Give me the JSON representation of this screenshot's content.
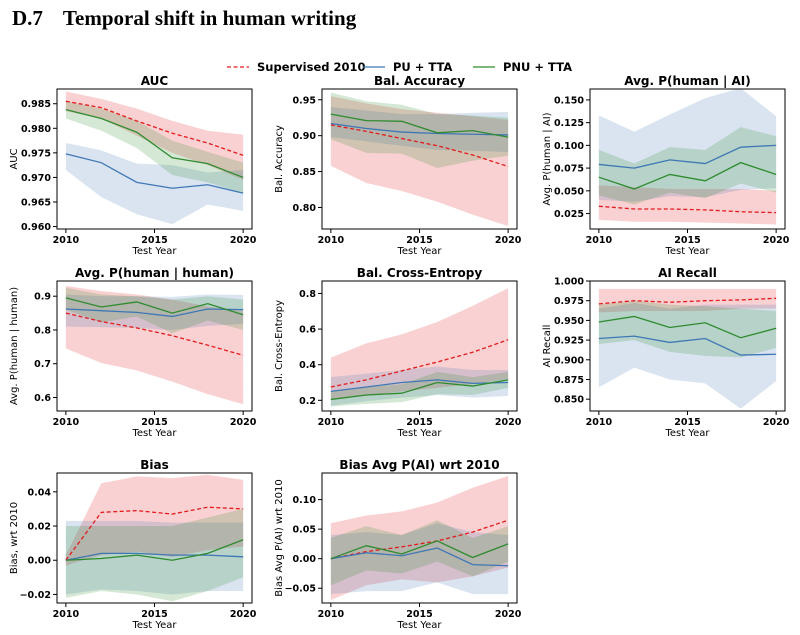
{
  "section": {
    "number": "D.7",
    "title": "Temporal shift in human writing"
  },
  "legend": {
    "position": "top-center",
    "entries": [
      {
        "label": "Supervised 2010",
        "color": "#e41a1c",
        "dash": true
      },
      {
        "label": "PU + TTA",
        "color": "#3f77b4",
        "dash": false
      },
      {
        "label": "PNU + TTA",
        "color": "#2e8b2e",
        "dash": false
      }
    ]
  },
  "chart_data": [
    {
      "type": "line",
      "title": "AUC",
      "xlabel": "Test Year",
      "ylabel": "AUC",
      "x": [
        2010,
        2012,
        2014,
        2016,
        2018,
        2020
      ],
      "xticks": [
        "2010",
        "2015",
        "2020"
      ],
      "ylim": [
        0.9595,
        0.988
      ],
      "yticks": [
        "0.960",
        "0.965",
        "0.970",
        "0.975",
        "0.980",
        "0.985"
      ],
      "series": [
        {
          "name": "Supervised 2010",
          "values": [
            0.9855,
            0.9842,
            0.9815,
            0.979,
            0.977,
            0.9745
          ],
          "band_low": [
            0.9835,
            0.982,
            0.9785,
            0.975,
            0.9725,
            0.9695
          ],
          "band_high": [
            0.9875,
            0.986,
            0.984,
            0.9815,
            0.9795,
            0.9787
          ]
        },
        {
          "name": "PU + TTA",
          "values": [
            0.9748,
            0.973,
            0.969,
            0.9678,
            0.9685,
            0.9668
          ],
          "band_low": [
            0.9715,
            0.966,
            0.9625,
            0.9605,
            0.9645,
            0.9632
          ],
          "band_high": [
            0.977,
            0.9755,
            0.9728,
            0.9725,
            0.971,
            0.9715
          ]
        },
        {
          "name": "PNU + TTA",
          "values": [
            0.9838,
            0.982,
            0.9792,
            0.974,
            0.9728,
            0.97
          ],
          "band_low": [
            0.982,
            0.9795,
            0.976,
            0.9705,
            0.969,
            0.9668
          ],
          "band_high": [
            0.9855,
            0.984,
            0.9815,
            0.9775,
            0.9752,
            0.973
          ]
        }
      ]
    },
    {
      "type": "line",
      "title": "Bal. Accuracy",
      "xlabel": "Test Year",
      "ylabel": "Bal. Accuracy",
      "x": [
        2010,
        2012,
        2014,
        2016,
        2018,
        2020
      ],
      "xticks": [
        "2010",
        "2015",
        "2020"
      ],
      "ylim": [
        0.77,
        0.965
      ],
      "yticks": [
        "0.80",
        "0.85",
        "0.90",
        "0.95"
      ],
      "series": [
        {
          "name": "Supervised 2010",
          "values": [
            0.915,
            0.906,
            0.896,
            0.886,
            0.873,
            0.857
          ],
          "band_low": [
            0.858,
            0.834,
            0.823,
            0.808,
            0.79,
            0.774
          ],
          "band_high": [
            0.955,
            0.945,
            0.937,
            0.932,
            0.927,
            0.922
          ]
        },
        {
          "name": "PU + TTA",
          "values": [
            0.917,
            0.91,
            0.905,
            0.903,
            0.902,
            0.901
          ],
          "band_low": [
            0.898,
            0.892,
            0.886,
            0.88,
            0.879,
            0.877
          ],
          "band_high": [
            0.94,
            0.935,
            0.93,
            0.93,
            0.932,
            0.933
          ]
        },
        {
          "name": "PNU + TTA",
          "values": [
            0.93,
            0.921,
            0.92,
            0.904,
            0.907,
            0.898
          ],
          "band_low": [
            0.895,
            0.876,
            0.875,
            0.855,
            0.865,
            0.872
          ],
          "band_high": [
            0.96,
            0.948,
            0.943,
            0.93,
            0.928,
            0.925
          ]
        }
      ]
    },
    {
      "type": "line",
      "title": "Avg. P(human | AI)",
      "xlabel": "Test Year",
      "ylabel": "Avg. P(human | AI)",
      "x": [
        2010,
        2012,
        2014,
        2016,
        2018,
        2020
      ],
      "xticks": [
        "2010",
        "2015",
        "2020"
      ],
      "ylim": [
        0.008,
        0.162
      ],
      "yticks": [
        "0.025",
        "0.050",
        "0.075",
        "0.100",
        "0.125",
        "0.150"
      ],
      "series": [
        {
          "name": "Supervised 2010",
          "values": [
            0.033,
            0.03,
            0.03,
            0.029,
            0.027,
            0.026
          ],
          "band_low": [
            0.018,
            0.016,
            0.016,
            0.015,
            0.014,
            0.013
          ],
          "band_high": [
            0.056,
            0.054,
            0.052,
            0.052,
            0.052,
            0.05
          ]
        },
        {
          "name": "PU + TTA",
          "values": [
            0.079,
            0.075,
            0.084,
            0.08,
            0.098,
            0.1
          ],
          "band_low": [
            0.04,
            0.038,
            0.044,
            0.043,
            0.051,
            0.053
          ],
          "band_high": [
            0.133,
            0.115,
            0.134,
            0.152,
            0.163,
            0.132
          ]
        },
        {
          "name": "PNU + TTA",
          "values": [
            0.065,
            0.052,
            0.068,
            0.061,
            0.081,
            0.068
          ],
          "band_low": [
            0.045,
            0.035,
            0.048,
            0.042,
            0.058,
            0.048
          ],
          "band_high": [
            0.095,
            0.08,
            0.098,
            0.095,
            0.12,
            0.11
          ]
        }
      ]
    },
    {
      "type": "line",
      "title": "Avg. P(human | human)",
      "xlabel": "Test Year",
      "ylabel": "Avg. P(human | human)",
      "x": [
        2010,
        2012,
        2014,
        2016,
        2018,
        2020
      ],
      "xticks": [
        "2010",
        "2015",
        "2020"
      ],
      "ylim": [
        0.56,
        0.945
      ],
      "yticks": [
        "0.6",
        "0.7",
        "0.8",
        "0.9"
      ],
      "series": [
        {
          "name": "Supervised 2010",
          "values": [
            0.85,
            0.825,
            0.806,
            0.783,
            0.755,
            0.725
          ],
          "band_low": [
            0.745,
            0.702,
            0.68,
            0.647,
            0.61,
            0.58
          ],
          "band_high": [
            0.93,
            0.915,
            0.905,
            0.89,
            0.87,
            0.855
          ]
        },
        {
          "name": "PU + TTA",
          "values": [
            0.862,
            0.857,
            0.852,
            0.84,
            0.862,
            0.86
          ],
          "band_low": [
            0.81,
            0.808,
            0.806,
            0.8,
            0.812,
            0.818
          ],
          "band_high": [
            0.905,
            0.9,
            0.9,
            0.898,
            0.905,
            0.904
          ]
        },
        {
          "name": "PNU + TTA",
          "values": [
            0.895,
            0.868,
            0.883,
            0.85,
            0.878,
            0.845
          ],
          "band_low": [
            0.86,
            0.822,
            0.84,
            0.79,
            0.828,
            0.8
          ],
          "band_high": [
            0.925,
            0.905,
            0.9,
            0.89,
            0.9,
            0.89
          ]
        }
      ]
    },
    {
      "type": "line",
      "title": "Bal. Cross-Entropy",
      "xlabel": "Test Year",
      "ylabel": "Bal. Cross-Entropy",
      "x": [
        2010,
        2012,
        2014,
        2016,
        2018,
        2020
      ],
      "xticks": [
        "2010",
        "2015",
        "2020"
      ],
      "ylim": [
        0.14,
        0.87
      ],
      "yticks": [
        "0.2",
        "0.4",
        "0.6",
        "0.8"
      ],
      "series": [
        {
          "name": "Supervised 2010",
          "values": [
            0.275,
            0.315,
            0.365,
            0.415,
            0.47,
            0.54
          ],
          "band_low": [
            0.205,
            0.225,
            0.25,
            0.27,
            0.29,
            0.32
          ],
          "band_high": [
            0.44,
            0.52,
            0.57,
            0.64,
            0.73,
            0.83
          ]
        },
        {
          "name": "PU + TTA",
          "values": [
            0.25,
            0.275,
            0.3,
            0.315,
            0.295,
            0.3
          ],
          "band_low": [
            0.17,
            0.195,
            0.215,
            0.23,
            0.215,
            0.225
          ],
          "band_high": [
            0.33,
            0.35,
            0.37,
            0.39,
            0.37,
            0.37
          ]
        },
        {
          "name": "PNU + TTA",
          "values": [
            0.205,
            0.23,
            0.24,
            0.3,
            0.28,
            0.315
          ],
          "band_low": [
            0.165,
            0.18,
            0.19,
            0.235,
            0.23,
            0.27
          ],
          "band_high": [
            0.25,
            0.275,
            0.29,
            0.36,
            0.33,
            0.36
          ]
        }
      ]
    },
    {
      "type": "line",
      "title": "AI Recall",
      "xlabel": "Test Year",
      "ylabel": "AI Recall",
      "x": [
        2010,
        2012,
        2014,
        2016,
        2018,
        2020
      ],
      "xticks": [
        "2010",
        "2015",
        "2020"
      ],
      "ylim": [
        0.835,
        1.0
      ],
      "yticks": [
        "0.850",
        "0.875",
        "0.900",
        "0.925",
        "0.950",
        "0.975",
        "1.000"
      ],
      "series": [
        {
          "name": "Supervised 2010",
          "values": [
            0.971,
            0.975,
            0.973,
            0.975,
            0.976,
            0.978
          ],
          "band_low": [
            0.96,
            0.962,
            0.962,
            0.962,
            0.965,
            0.965
          ],
          "band_high": [
            0.99,
            0.99,
            0.99,
            0.99,
            0.99,
            0.99
          ]
        },
        {
          "name": "PU + TTA",
          "values": [
            0.927,
            0.93,
            0.922,
            0.927,
            0.906,
            0.907
          ],
          "band_low": [
            0.865,
            0.89,
            0.875,
            0.87,
            0.838,
            0.873
          ],
          "band_high": [
            0.965,
            0.972,
            0.965,
            0.97,
            0.97,
            0.97
          ]
        },
        {
          "name": "PNU + TTA",
          "values": [
            0.948,
            0.955,
            0.941,
            0.947,
            0.928,
            0.94
          ],
          "band_low": [
            0.92,
            0.925,
            0.91,
            0.905,
            0.903,
            0.915
          ],
          "band_high": [
            0.97,
            0.975,
            0.97,
            0.968,
            0.965,
            0.962
          ]
        }
      ]
    },
    {
      "type": "line",
      "title": "Bias",
      "xlabel": "Test Year",
      "ylabel": "Bias, wrt 2010",
      "x": [
        2010,
        2012,
        2014,
        2016,
        2018,
        2020
      ],
      "xticks": [
        "2010",
        "2015",
        "2020"
      ],
      "ylim": [
        -0.025,
        0.051
      ],
      "yticks": [
        "−0.02",
        "0.00",
        "0.02",
        "0.04"
      ],
      "series": [
        {
          "name": "Supervised 2010",
          "values": [
            0.0,
            0.028,
            0.029,
            0.027,
            0.031,
            0.03
          ],
          "band_low": [
            -0.003,
            0.003,
            0.005,
            0.002,
            0.006,
            0.008
          ],
          "band_high": [
            0.003,
            0.045,
            0.049,
            0.048,
            0.05,
            0.047
          ]
        },
        {
          "name": "PU + TTA",
          "values": [
            0.0,
            0.004,
            0.004,
            0.003,
            0.003,
            0.002
          ],
          "band_low": [
            -0.02,
            -0.017,
            -0.018,
            -0.02,
            -0.018,
            -0.018
          ],
          "band_high": [
            0.023,
            0.023,
            0.023,
            0.022,
            0.022,
            0.022
          ]
        },
        {
          "name": "PNU + TTA",
          "values": [
            0.0,
            0.001,
            0.003,
            0.0,
            0.004,
            0.012
          ],
          "band_low": [
            -0.022,
            -0.018,
            -0.02,
            -0.024,
            -0.018,
            -0.01
          ],
          "band_high": [
            0.02,
            0.02,
            0.02,
            0.02,
            0.025,
            0.03
          ]
        }
      ]
    },
    {
      "type": "line",
      "title": "Bias Avg P(AI) wrt 2010",
      "xlabel": "Test Year",
      "ylabel": "Bias Avg P(AI) wrt 2010",
      "x": [
        2010,
        2012,
        2014,
        2016,
        2018,
        2020
      ],
      "xticks": [
        "2010",
        "2015",
        "2020"
      ],
      "ylim": [
        -0.075,
        0.145
      ],
      "yticks": [
        "−0.05",
        "0.00",
        "0.05",
        "0.10"
      ],
      "series": [
        {
          "name": "Supervised 2010",
          "values": [
            0.0,
            0.012,
            0.02,
            0.03,
            0.045,
            0.065
          ],
          "band_low": [
            -0.07,
            -0.045,
            -0.035,
            -0.04,
            -0.03,
            -0.015
          ],
          "band_high": [
            0.06,
            0.073,
            0.08,
            0.095,
            0.12,
            0.14
          ]
        },
        {
          "name": "PU + TTA",
          "values": [
            0.0,
            0.01,
            0.005,
            0.018,
            -0.01,
            -0.012
          ],
          "band_low": [
            -0.06,
            -0.055,
            -0.055,
            -0.04,
            -0.06,
            -0.06
          ],
          "band_high": [
            0.04,
            0.045,
            0.04,
            0.06,
            0.045,
            0.04
          ]
        },
        {
          "name": "PNU + TTA",
          "values": [
            0.0,
            0.022,
            0.008,
            0.03,
            0.002,
            0.025
          ],
          "band_low": [
            -0.045,
            -0.02,
            -0.025,
            -0.005,
            -0.03,
            -0.005
          ],
          "band_high": [
            0.035,
            0.055,
            0.04,
            0.065,
            0.035,
            0.055
          ]
        }
      ]
    }
  ]
}
